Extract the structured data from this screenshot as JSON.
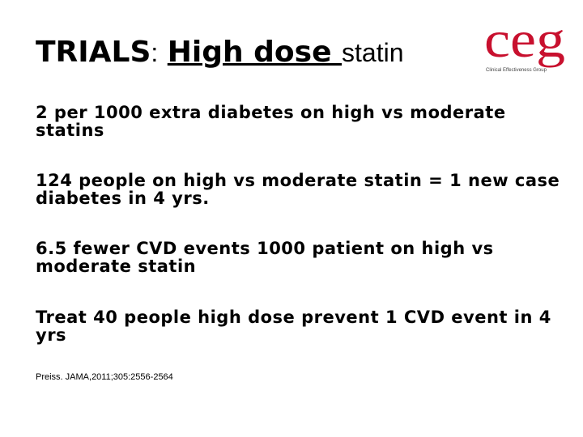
{
  "title": {
    "part1": "TRIALS",
    "part2": ":",
    "part3": "High dose ",
    "part4": "statin"
  },
  "logo": {
    "text": "ceg",
    "tagline": "Clinical Effectiveness Group"
  },
  "points": [
    "2 per 1000 extra diabetes on high vs moderate statins",
    "124 people on high vs moderate statin = 1 new case diabetes in 4 yrs.",
    "6.5 fewer CVD events 1000 patient on high vs moderate statin",
    "Treat 40 people high dose prevent 1 CVD event in 4 yrs"
  ],
  "reference": "Preiss. JAMA,2011;305:2556-2564"
}
